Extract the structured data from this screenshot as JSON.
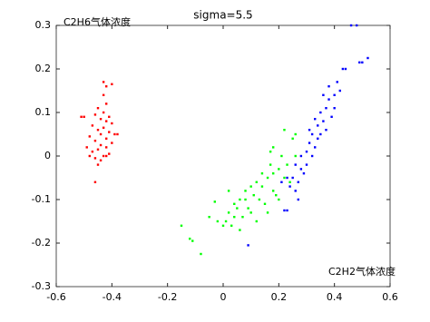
{
  "chart_data": {
    "type": "scatter",
    "title": "sigma=5.5",
    "annotations": [
      "C2H6气体浓度",
      "C2H2气体浓度"
    ],
    "xlim": [
      -0.6,
      0.6
    ],
    "xticks": [
      -0.6,
      -0.4,
      -0.2,
      0,
      0.2,
      0.4,
      0.6
    ],
    "ylim": [
      -0.3,
      0.3
    ],
    "yticks": [
      -0.3,
      -0.2,
      -0.1,
      0,
      0.1,
      0.2,
      0.3
    ],
    "series": [
      {
        "color": "#ff0000",
        "x": [
          -0.43,
          -0.4,
          -0.42,
          -0.43,
          -0.42,
          -0.45,
          -0.43,
          -0.46,
          -0.41,
          -0.5,
          -0.44,
          -0.42,
          -0.4,
          -0.47,
          -0.43,
          -0.45,
          -0.41,
          -0.39,
          -0.44,
          -0.48,
          -0.42,
          -0.46,
          -0.4,
          -0.44,
          -0.49,
          -0.42,
          -0.45,
          -0.47,
          -0.41,
          -0.43,
          -0.46,
          -0.44,
          -0.42,
          -0.48,
          -0.45,
          -0.46,
          -0.38,
          -0.51
        ],
        "values": [
          0.17,
          0.165,
          0.16,
          0.14,
          0.12,
          0.11,
          0.1,
          0.095,
          0.09,
          0.09,
          0.085,
          0.08,
          0.075,
          0.07,
          0.065,
          0.06,
          0.055,
          0.05,
          0.05,
          0.045,
          0.04,
          0.035,
          0.03,
          0.025,
          0.02,
          0.02,
          0.015,
          0.01,
          0.005,
          0.0,
          -0.005,
          -0.01,
          0.0,
          0.0,
          -0.02,
          -0.06,
          0.05,
          0.09
        ]
      },
      {
        "color": "#00ff00",
        "x": [
          -0.15,
          -0.12,
          -0.11,
          -0.08,
          -0.05,
          -0.03,
          0.0,
          0.01,
          0.02,
          0.03,
          0.04,
          0.05,
          0.06,
          0.06,
          0.07,
          0.08,
          0.09,
          0.1,
          0.11,
          0.12,
          0.12,
          0.13,
          0.14,
          0.15,
          0.16,
          0.16,
          0.17,
          0.18,
          0.18,
          0.19,
          0.2,
          0.2,
          0.21,
          0.22,
          0.22,
          0.23,
          0.24,
          0.25,
          0.26,
          0.18,
          0.17,
          0.14,
          0.1,
          0.08,
          0.04,
          0.02,
          -0.02,
          0.26
        ],
        "values": [
          -0.16,
          -0.19,
          -0.195,
          -0.225,
          -0.14,
          -0.105,
          -0.16,
          -0.15,
          -0.13,
          -0.16,
          -0.11,
          -0.12,
          -0.17,
          -0.1,
          -0.14,
          -0.08,
          -0.12,
          -0.13,
          -0.09,
          -0.06,
          -0.15,
          -0.1,
          -0.07,
          -0.11,
          -0.05,
          -0.13,
          -0.02,
          -0.08,
          -0.04,
          -0.09,
          -0.03,
          -0.1,
          0.0,
          -0.05,
          0.06,
          -0.02,
          -0.06,
          0.04,
          0.0,
          0.02,
          0.01,
          -0.04,
          -0.07,
          -0.1,
          -0.14,
          -0.08,
          -0.15,
          0.05
        ]
      },
      {
        "color": "#0000ff",
        "x": [
          0.09,
          0.22,
          0.23,
          0.21,
          0.23,
          0.24,
          0.25,
          0.26,
          0.27,
          0.27,
          0.26,
          0.28,
          0.28,
          0.3,
          0.3,
          0.31,
          0.32,
          0.32,
          0.33,
          0.34,
          0.34,
          0.35,
          0.35,
          0.36,
          0.37,
          0.37,
          0.38,
          0.39,
          0.4,
          0.4,
          0.42,
          0.43,
          0.44,
          0.46,
          0.48,
          0.49,
          0.5,
          0.52,
          0.36,
          0.31,
          0.29,
          0.33,
          0.38,
          0.41
        ],
        "values": [
          -0.205,
          -0.125,
          -0.125,
          -0.06,
          -0.05,
          -0.07,
          -0.05,
          -0.08,
          -0.06,
          -0.1,
          -0.02,
          -0.03,
          0.0,
          0.01,
          -0.02,
          0.03,
          0.0,
          0.05,
          0.02,
          0.04,
          0.07,
          0.05,
          0.1,
          0.08,
          0.06,
          0.11,
          0.13,
          0.09,
          0.14,
          0.11,
          0.15,
          0.2,
          0.2,
          0.3,
          0.3,
          0.215,
          0.215,
          0.225,
          0.14,
          0.06,
          -0.04,
          0.085,
          0.16,
          0.17
        ]
      }
    ]
  }
}
